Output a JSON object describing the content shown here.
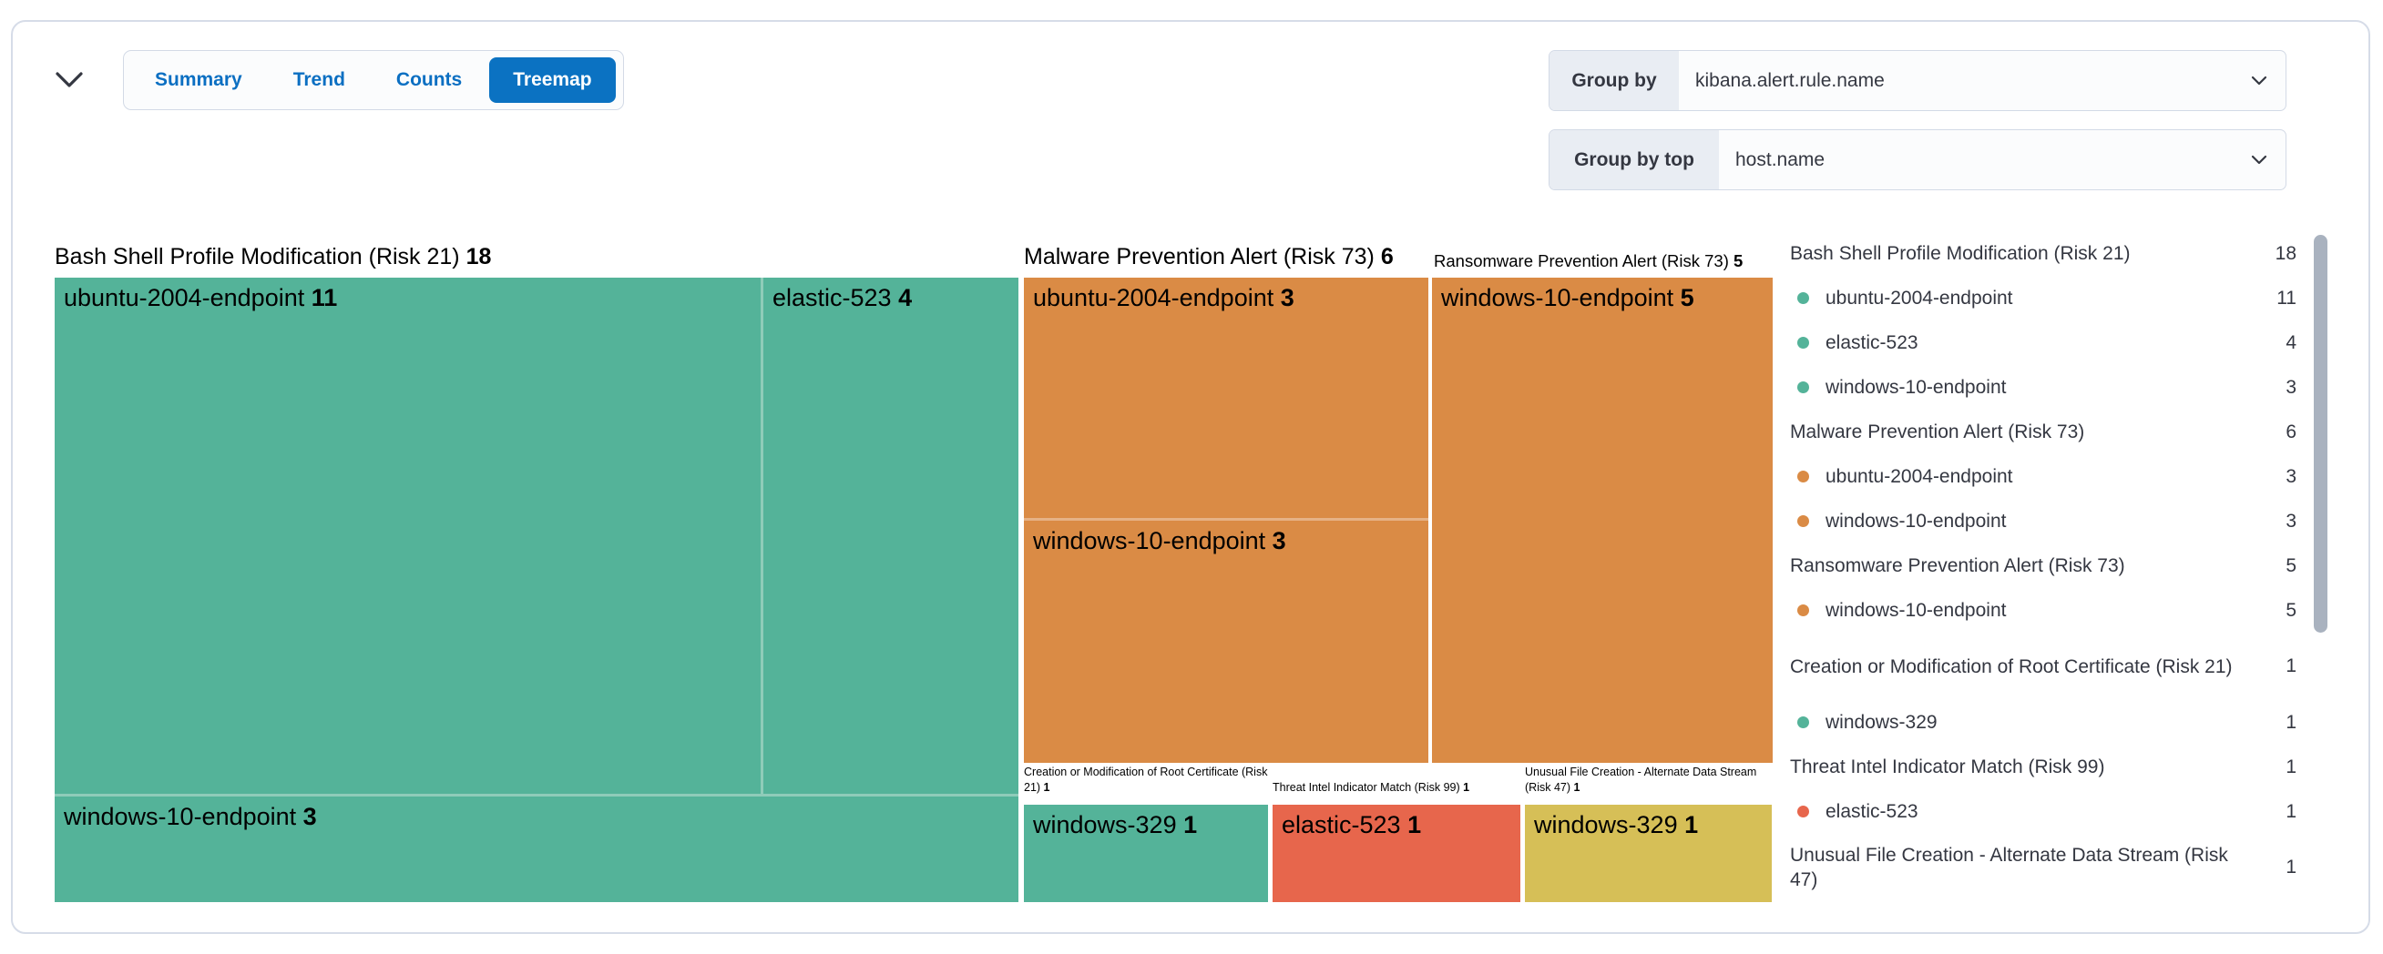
{
  "header": {
    "tabs": [
      {
        "label": "Summary",
        "selected": false
      },
      {
        "label": "Trend",
        "selected": false
      },
      {
        "label": "Counts",
        "selected": false
      },
      {
        "label": "Treemap",
        "selected": true
      }
    ],
    "group_by": {
      "label": "Group by",
      "value": "kibana.alert.rule.name"
    },
    "group_by_top": {
      "label": "Group by top",
      "value": "host.name"
    }
  },
  "colors": {
    "green": "#54B399",
    "orange": "#DA8B45",
    "red": "#E7664C",
    "yellow": "#D6BF57",
    "accent_blue": "#0B72C2",
    "text_dark": "#343741"
  },
  "chart_data": {
    "type": "treemap",
    "groups": [
      {
        "name": "Bash Shell Profile Modification (Risk 21)",
        "value": 18,
        "color": "#54B399",
        "children": [
          {
            "name": "ubuntu-2004-endpoint",
            "value": 11
          },
          {
            "name": "elastic-523",
            "value": 4
          },
          {
            "name": "windows-10-endpoint",
            "value": 3
          }
        ]
      },
      {
        "name": "Malware Prevention Alert (Risk 73)",
        "value": 6,
        "color": "#DA8B45",
        "children": [
          {
            "name": "ubuntu-2004-endpoint",
            "value": 3
          },
          {
            "name": "windows-10-endpoint",
            "value": 3
          }
        ]
      },
      {
        "name": "Ransomware Prevention Alert (Risk 73)",
        "value": 5,
        "color": "#DA8B45",
        "children": [
          {
            "name": "windows-10-endpoint",
            "value": 5
          }
        ]
      },
      {
        "name": "Creation or Modification of Root Certificate (Risk 21)",
        "value": 1,
        "color": "#54B399",
        "children": [
          {
            "name": "windows-329",
            "value": 1
          }
        ]
      },
      {
        "name": "Threat Intel Indicator Match (Risk 99)",
        "value": 1,
        "color": "#E7664C",
        "children": [
          {
            "name": "elastic-523",
            "value": 1
          }
        ]
      },
      {
        "name": "Unusual File Creation - Alternate Data Stream (Risk 47)",
        "value": 1,
        "color": "#D6BF57",
        "children": [
          {
            "name": "windows-329",
            "value": 1
          }
        ]
      }
    ]
  },
  "legend": {
    "rows": [
      {
        "kind": "group",
        "label": "Bash Shell Profile Modification (Risk 21)",
        "value": "18",
        "lines": 1
      },
      {
        "kind": "item",
        "label": "ubuntu-2004-endpoint",
        "value": "11",
        "color": "#54B399",
        "lines": 1
      },
      {
        "kind": "item",
        "label": "elastic-523",
        "value": "4",
        "color": "#54B399",
        "lines": 1
      },
      {
        "kind": "item",
        "label": "windows-10-endpoint",
        "value": "3",
        "color": "#54B399",
        "lines": 1
      },
      {
        "kind": "group",
        "label": "Malware Prevention Alert (Risk 73)",
        "value": "6",
        "lines": 1
      },
      {
        "kind": "item",
        "label": "ubuntu-2004-endpoint",
        "value": "3",
        "color": "#DA8B45",
        "lines": 1
      },
      {
        "kind": "item",
        "label": "windows-10-endpoint",
        "value": "3",
        "color": "#DA8B45",
        "lines": 1
      },
      {
        "kind": "group",
        "label": "Ransomware Prevention Alert (Risk 73)",
        "value": "5",
        "lines": 1
      },
      {
        "kind": "item",
        "label": "windows-10-endpoint",
        "value": "5",
        "color": "#DA8B45",
        "lines": 1
      },
      {
        "kind": "group",
        "label": "Creation or Modification of Root Certificate (Risk 21)",
        "value": "1",
        "lines": 2
      },
      {
        "kind": "item",
        "label": "windows-329",
        "value": "1",
        "color": "#54B399",
        "lines": 1
      },
      {
        "kind": "group",
        "label": "Threat Intel Indicator Match (Risk 99)",
        "value": "1",
        "lines": 1
      },
      {
        "kind": "item",
        "label": "elastic-523",
        "value": "1",
        "color": "#E7664C",
        "lines": 1
      },
      {
        "kind": "group",
        "label": "Unusual File Creation - Alternate Data Stream (Risk 47)",
        "value": "1",
        "lines": 2
      }
    ]
  }
}
